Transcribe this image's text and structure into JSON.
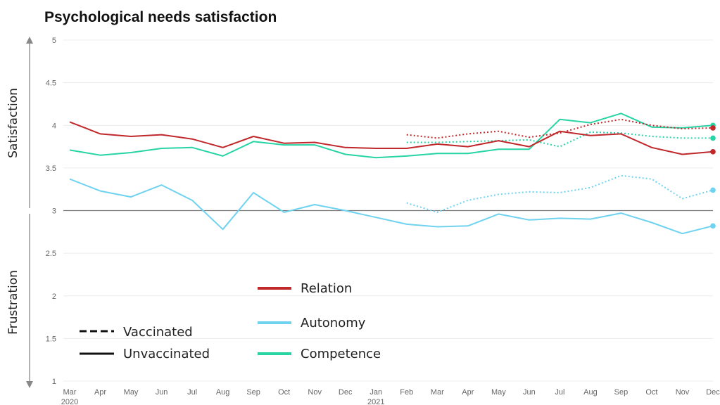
{
  "chart_data": {
    "type": "line",
    "title": "Psychological needs satisfaction",
    "ylim": [
      1,
      5
    ],
    "y_ticks": [
      "1",
      "1.5",
      "2",
      "2.5",
      "3",
      "3.5",
      "4",
      "4.5",
      "5"
    ],
    "grid": true,
    "months": [
      "Mar\n2020",
      "Apr",
      "May",
      "Jun",
      "Jul",
      "Aug",
      "Sep",
      "Oct",
      "Nov",
      "Dec",
      "Jan\n2021",
      "Feb",
      "Mar",
      "Apr",
      "May",
      "Jun",
      "Jul",
      "Aug",
      "Sep",
      "Oct",
      "Nov",
      "Dec"
    ],
    "side_labels": {
      "upper": "Satisfaction",
      "lower": "Frustration"
    },
    "style_legend": {
      "dashed": "Vaccinated",
      "solid": "Unvaccinated"
    },
    "colors": {
      "Relation": "#c0282b",
      "Autonomy": "#6fd3f0",
      "Competence": "#27d4a4",
      "axis": "#888888"
    },
    "series": [
      {
        "name": "Relation",
        "style": "solid",
        "x_start_index": 0,
        "values": [
          4.04,
          3.9,
          3.87,
          3.89,
          3.84,
          3.74,
          3.87,
          3.79,
          3.8,
          3.74,
          3.73,
          3.73,
          3.78,
          3.75,
          3.82,
          3.75,
          3.93,
          3.88,
          3.9,
          3.74,
          3.66,
          3.69
        ]
      },
      {
        "name": "Competence",
        "style": "solid",
        "x_start_index": 0,
        "values": [
          3.71,
          3.65,
          3.68,
          3.73,
          3.74,
          3.64,
          3.81,
          3.77,
          3.77,
          3.66,
          3.62,
          3.64,
          3.67,
          3.67,
          3.72,
          3.72,
          4.07,
          4.03,
          4.14,
          3.98,
          3.97,
          4.0
        ]
      },
      {
        "name": "Autonomy",
        "style": "solid",
        "x_start_index": 0,
        "values": [
          3.37,
          3.23,
          3.16,
          3.3,
          3.12,
          2.78,
          3.21,
          2.98,
          3.07,
          3.0,
          2.92,
          2.84,
          2.81,
          2.82,
          2.96,
          2.89,
          2.91,
          2.9,
          2.97,
          2.86,
          2.73,
          2.82
        ]
      },
      {
        "name": "Relation",
        "style": "dashed",
        "x_start_index": 11,
        "values": [
          3.89,
          3.85,
          3.9,
          3.93,
          3.86,
          3.91,
          4.01,
          4.07,
          4.0,
          3.96,
          3.97
        ]
      },
      {
        "name": "Competence",
        "style": "dashed",
        "x_start_index": 11,
        "values": [
          3.8,
          3.8,
          3.81,
          3.82,
          3.83,
          3.75,
          3.92,
          3.91,
          3.87,
          3.85,
          3.85
        ]
      },
      {
        "name": "Autonomy",
        "style": "dashed",
        "x_start_index": 11,
        "values": [
          3.09,
          2.98,
          3.12,
          3.19,
          3.22,
          3.21,
          3.27,
          3.41,
          3.37,
          3.14,
          3.24
        ]
      }
    ]
  }
}
